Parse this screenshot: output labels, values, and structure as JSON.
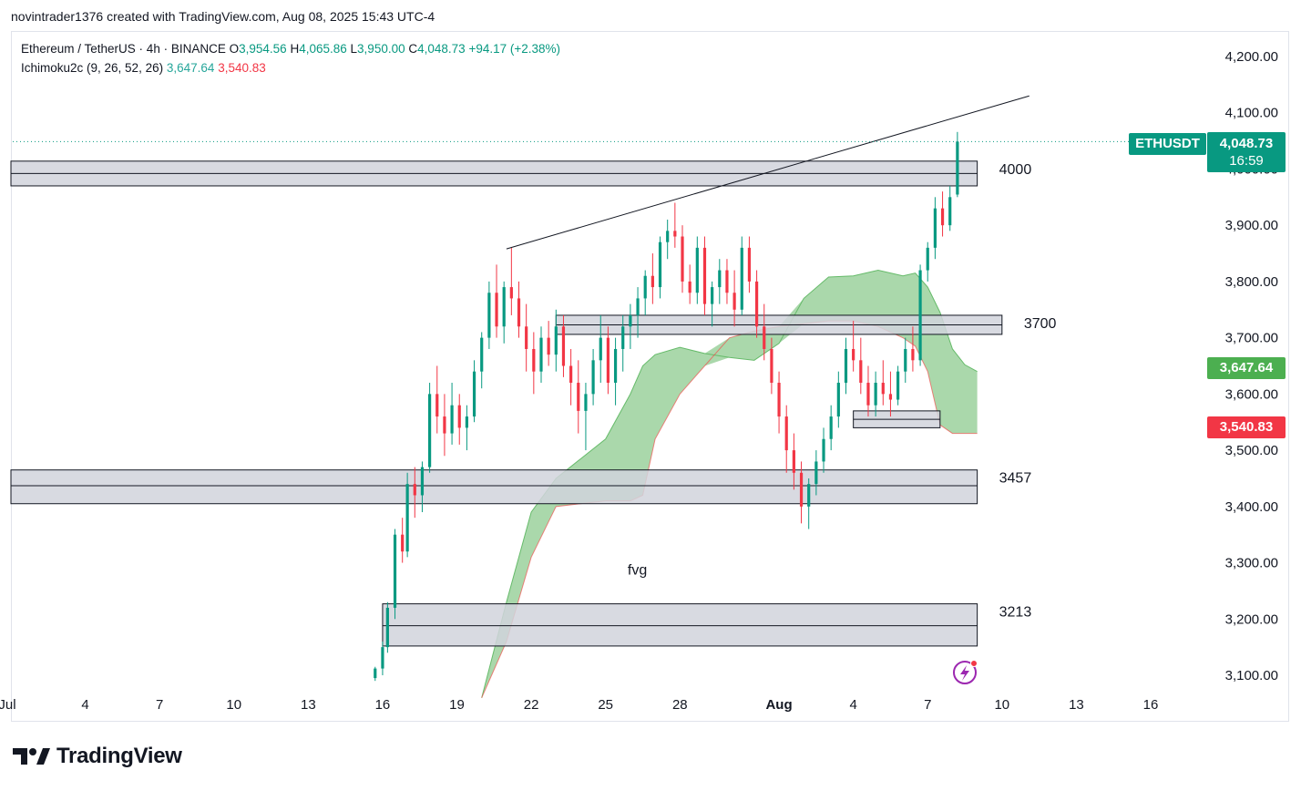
{
  "header": {
    "credit": "novintrader1376 created with TradingView.com, Aug 08, 2025 15:43 UTC-4"
  },
  "legend": {
    "symbol": "Ethereum / TetherUS · 4h · BINANCE",
    "o_label": "O",
    "o": "3,954.56",
    "h_label": "H",
    "h": "4,065.86",
    "l_label": "L",
    "l": "3,950.00",
    "c_label": "C",
    "c": "4,048.73",
    "change": "+94.17 (+2.38%)",
    "indicator": "Ichimoku2c (9, 26, 52, 26)",
    "ind_v1": "3,647.64",
    "ind_v2": "3,540.83"
  },
  "price_tags": {
    "symbol": "ETHUSDT",
    "last": "4,048.73",
    "countdown": "16:59",
    "cloud_upper": "3,647.64",
    "cloud_lower": "3,540.83"
  },
  "colors": {
    "up": "#089981",
    "down": "#f23645",
    "cloud": "#a5d6a7",
    "zone": "#d1d4dc"
  },
  "brand": {
    "name": "TradingView"
  },
  "chart_data": {
    "type": "candlestick",
    "title": "Ethereum / TetherUS · 4h · BINANCE",
    "y_axis": {
      "min": 3075,
      "max": 4240,
      "ticks": [
        "4,200.00",
        "4,100.00",
        "4,000.00",
        "3,900.00",
        "3,800.00",
        "3,700.00",
        "3,600.00",
        "3,500.00",
        "3,400.00",
        "3,300.00",
        "3,200.00",
        "3,100.00"
      ]
    },
    "x_axis": {
      "ticks": [
        "Jul",
        "4",
        "7",
        "10",
        "13",
        "16",
        "19",
        "22",
        "25",
        "28",
        "Aug",
        "4",
        "7",
        "10",
        "13",
        "16"
      ],
      "start": "Jul 1",
      "end": "Aug 17",
      "bold_ticks": [
        "Aug"
      ]
    },
    "zones": [
      {
        "label": "4000",
        "from": {
          "date": "Jul 1",
          "price": 4014
        },
        "to": {
          "date": "Aug 9"
        },
        "mid": 3992,
        "low": 3970
      },
      {
        "label": "3700",
        "from": {
          "date": "Jul 23",
          "price": 3740
        },
        "to": {
          "date": "Aug 10"
        },
        "mid": 3723,
        "low": 3706
      },
      {
        "label": "",
        "from": {
          "date": "Aug 4",
          "price": 3570
        },
        "to": {
          "date": "Aug 7.5"
        },
        "mid": 3555,
        "low": 3540
      },
      {
        "label": "3457",
        "from": {
          "date": "Jul 1",
          "price": 3465
        },
        "to": {
          "date": "Aug 9"
        },
        "mid": 3437,
        "low": 3405
      },
      {
        "label": "3213",
        "from": {
          "date": "Jul 16",
          "price": 3227
        },
        "to": {
          "date": "Aug 9"
        },
        "mid": 3188,
        "low": 3152
      }
    ],
    "trendline": {
      "from": {
        "date": "Jul 21",
        "price": 3858
      },
      "to": {
        "date": "Aug 11.1",
        "price": 4130
      }
    },
    "annotations": [
      {
        "text": "fvg",
        "date": "Jul 26",
        "price": 3290
      }
    ],
    "last_price": 4048.73,
    "ichimoku": {
      "span_a": [
        3060,
        3230,
        3390,
        3450,
        3520,
        3600,
        3650,
        3670,
        3683,
        3672,
        3665,
        3660,
        3690,
        3770,
        3808,
        3810,
        3820,
        3810,
        3815,
        3790,
        3745,
        3680,
        3652,
        3640
      ],
      "span_b": [
        3060,
        3160,
        3310,
        3400,
        3410,
        3410,
        3420,
        3520,
        3600,
        3650,
        3700,
        3712,
        3720,
        3725,
        3730,
        3730,
        3720,
        3700,
        3685,
        3640,
        3545,
        3530,
        3530,
        3530
      ],
      "dates": [
        "Jul 20",
        "Jul 21",
        "Jul 22",
        "Jul 23",
        "Jul 25",
        "Jul 26",
        "Jul 26.5",
        "Jul 27",
        "Jul 28",
        "Jul 29",
        "Jul 30",
        "Jul 31",
        "Aug 1",
        "Aug 2",
        "Aug 3",
        "Aug 4",
        "Aug 5",
        "Aug 6",
        "Aug 6.5",
        "Aug 7",
        "Aug 7.5",
        "Aug 8",
        "Aug 8.5",
        "Aug 9"
      ]
    },
    "candles": [
      [
        "Jul 15.7",
        3095,
        3115,
        3090,
        3112
      ],
      [
        "Jul 16",
        3112,
        3160,
        3100,
        3150
      ],
      [
        "Jul 16.2",
        3150,
        3230,
        3140,
        3220
      ],
      [
        "Jul 16.5",
        3220,
        3360,
        3200,
        3350
      ],
      [
        "Jul 16.8",
        3350,
        3380,
        3300,
        3320
      ],
      [
        "Jul 17",
        3320,
        3460,
        3310,
        3440
      ],
      [
        "Jul 17.3",
        3440,
        3470,
        3380,
        3420
      ],
      [
        "Jul 17.6",
        3420,
        3480,
        3390,
        3470
      ],
      [
        "Jul 17.9",
        3470,
        3620,
        3460,
        3600
      ],
      [
        "Jul 18.2",
        3600,
        3650,
        3530,
        3560
      ],
      [
        "Jul 18.5",
        3560,
        3600,
        3490,
        3530
      ],
      [
        "Jul 18.8",
        3530,
        3620,
        3510,
        3580
      ],
      [
        "Jul 19.1",
        3580,
        3600,
        3510,
        3540
      ],
      [
        "Jul 19.4",
        3540,
        3580,
        3500,
        3560
      ],
      [
        "Jul 19.7",
        3560,
        3660,
        3550,
        3640
      ],
      [
        "Jul 20",
        3640,
        3710,
        3610,
        3700
      ],
      [
        "Jul 20.3",
        3700,
        3800,
        3680,
        3780
      ],
      [
        "Jul 20.6",
        3780,
        3830,
        3700,
        3720
      ],
      [
        "Jul 20.9",
        3720,
        3800,
        3690,
        3790
      ],
      [
        "Jul 21.2",
        3790,
        3860,
        3740,
        3770
      ],
      [
        "Jul 21.5",
        3770,
        3800,
        3700,
        3720
      ],
      [
        "Jul 21.8",
        3720,
        3760,
        3640,
        3680
      ],
      [
        "Jul 22.1",
        3680,
        3710,
        3600,
        3640
      ],
      [
        "Jul 22.4",
        3640,
        3720,
        3620,
        3700
      ],
      [
        "Jul 22.7",
        3700,
        3730,
        3650,
        3670
      ],
      [
        "Jul 23",
        3670,
        3750,
        3640,
        3720
      ],
      [
        "Jul 23.3",
        3720,
        3740,
        3630,
        3650
      ],
      [
        "Jul 23.6",
        3650,
        3680,
        3580,
        3620
      ],
      [
        "Jul 23.9",
        3620,
        3660,
        3530,
        3570
      ],
      [
        "Jul 24.2",
        3570,
        3620,
        3500,
        3600
      ],
      [
        "Jul 24.5",
        3600,
        3680,
        3580,
        3660
      ],
      [
        "Jul 24.8",
        3660,
        3740,
        3620,
        3700
      ],
      [
        "Jul 25.1",
        3700,
        3720,
        3600,
        3620
      ],
      [
        "Jul 25.4",
        3620,
        3700,
        3580,
        3680
      ],
      [
        "Jul 25.7",
        3680,
        3740,
        3640,
        3720
      ],
      [
        "Jul 26",
        3720,
        3760,
        3680,
        3740
      ],
      [
        "Jul 26.3",
        3740,
        3790,
        3700,
        3770
      ],
      [
        "Jul 26.6",
        3770,
        3820,
        3740,
        3810
      ],
      [
        "Jul 26.9",
        3810,
        3850,
        3760,
        3790
      ],
      [
        "Jul 27.2",
        3790,
        3880,
        3770,
        3870
      ],
      [
        "Jul 27.5",
        3870,
        3910,
        3840,
        3890
      ],
      [
        "Jul 27.8",
        3890,
        3940,
        3860,
        3880
      ],
      [
        "Jul 28.1",
        3880,
        3900,
        3780,
        3800
      ],
      [
        "Jul 28.4",
        3800,
        3830,
        3760,
        3780
      ],
      [
        "Jul 28.7",
        3780,
        3880,
        3760,
        3860
      ],
      [
        "Jul 29",
        3860,
        3880,
        3740,
        3760
      ],
      [
        "Jul 29.3",
        3760,
        3800,
        3720,
        3790
      ],
      [
        "Jul 29.6",
        3790,
        3840,
        3760,
        3820
      ],
      [
        "Jul 29.9",
        3820,
        3840,
        3760,
        3780
      ],
      [
        "Jul 30.2",
        3780,
        3820,
        3720,
        3750
      ],
      [
        "Jul 30.5",
        3750,
        3880,
        3740,
        3860
      ],
      [
        "Jul 30.8",
        3860,
        3880,
        3780,
        3800
      ],
      [
        "Jul 31.1",
        3800,
        3820,
        3700,
        3720
      ],
      [
        "Jul 31.4",
        3720,
        3760,
        3660,
        3680
      ],
      [
        "Jul 31.7",
        3680,
        3700,
        3600,
        3620
      ],
      [
        "Aug 1",
        3620,
        3640,
        3530,
        3560
      ],
      [
        "Aug 1.3",
        3560,
        3580,
        3460,
        3500
      ],
      [
        "Aug 1.6",
        3500,
        3530,
        3430,
        3460
      ],
      [
        "Aug 1.9",
        3460,
        3480,
        3370,
        3400
      ],
      [
        "Aug 2.2",
        3400,
        3450,
        3360,
        3440
      ],
      [
        "Aug 2.5",
        3440,
        3500,
        3420,
        3480
      ],
      [
        "Aug 2.8",
        3480,
        3540,
        3460,
        3520
      ],
      [
        "Aug 3.1",
        3520,
        3580,
        3500,
        3560
      ],
      [
        "Aug 3.4",
        3560,
        3640,
        3540,
        3620
      ],
      [
        "Aug 3.7",
        3620,
        3700,
        3600,
        3680
      ],
      [
        "Aug 4",
        3680,
        3730,
        3640,
        3660
      ],
      [
        "Aug 4.3",
        3660,
        3700,
        3600,
        3620
      ],
      [
        "Aug 4.6",
        3620,
        3650,
        3560,
        3580
      ],
      [
        "Aug 4.9",
        3580,
        3640,
        3560,
        3620
      ],
      [
        "Aug 5.2",
        3620,
        3660,
        3580,
        3600
      ],
      [
        "Aug 5.5",
        3600,
        3640,
        3560,
        3590
      ],
      [
        "Aug 5.8",
        3590,
        3650,
        3580,
        3640
      ],
      [
        "Aug 6.1",
        3640,
        3700,
        3620,
        3680
      ],
      [
        "Aug 6.4",
        3680,
        3720,
        3640,
        3660
      ],
      [
        "Aug 6.7",
        3660,
        3830,
        3650,
        3820
      ],
      [
        "Aug 7",
        3820,
        3870,
        3800,
        3860
      ],
      [
        "Aug 7.3",
        3860,
        3950,
        3840,
        3930
      ],
      [
        "Aug 7.6",
        3930,
        3960,
        3880,
        3900
      ],
      [
        "Aug 7.9",
        3900,
        3970,
        3890,
        3950
      ],
      [
        "Aug 8.2",
        3954.56,
        4065.86,
        3950,
        4048.73
      ]
    ]
  }
}
